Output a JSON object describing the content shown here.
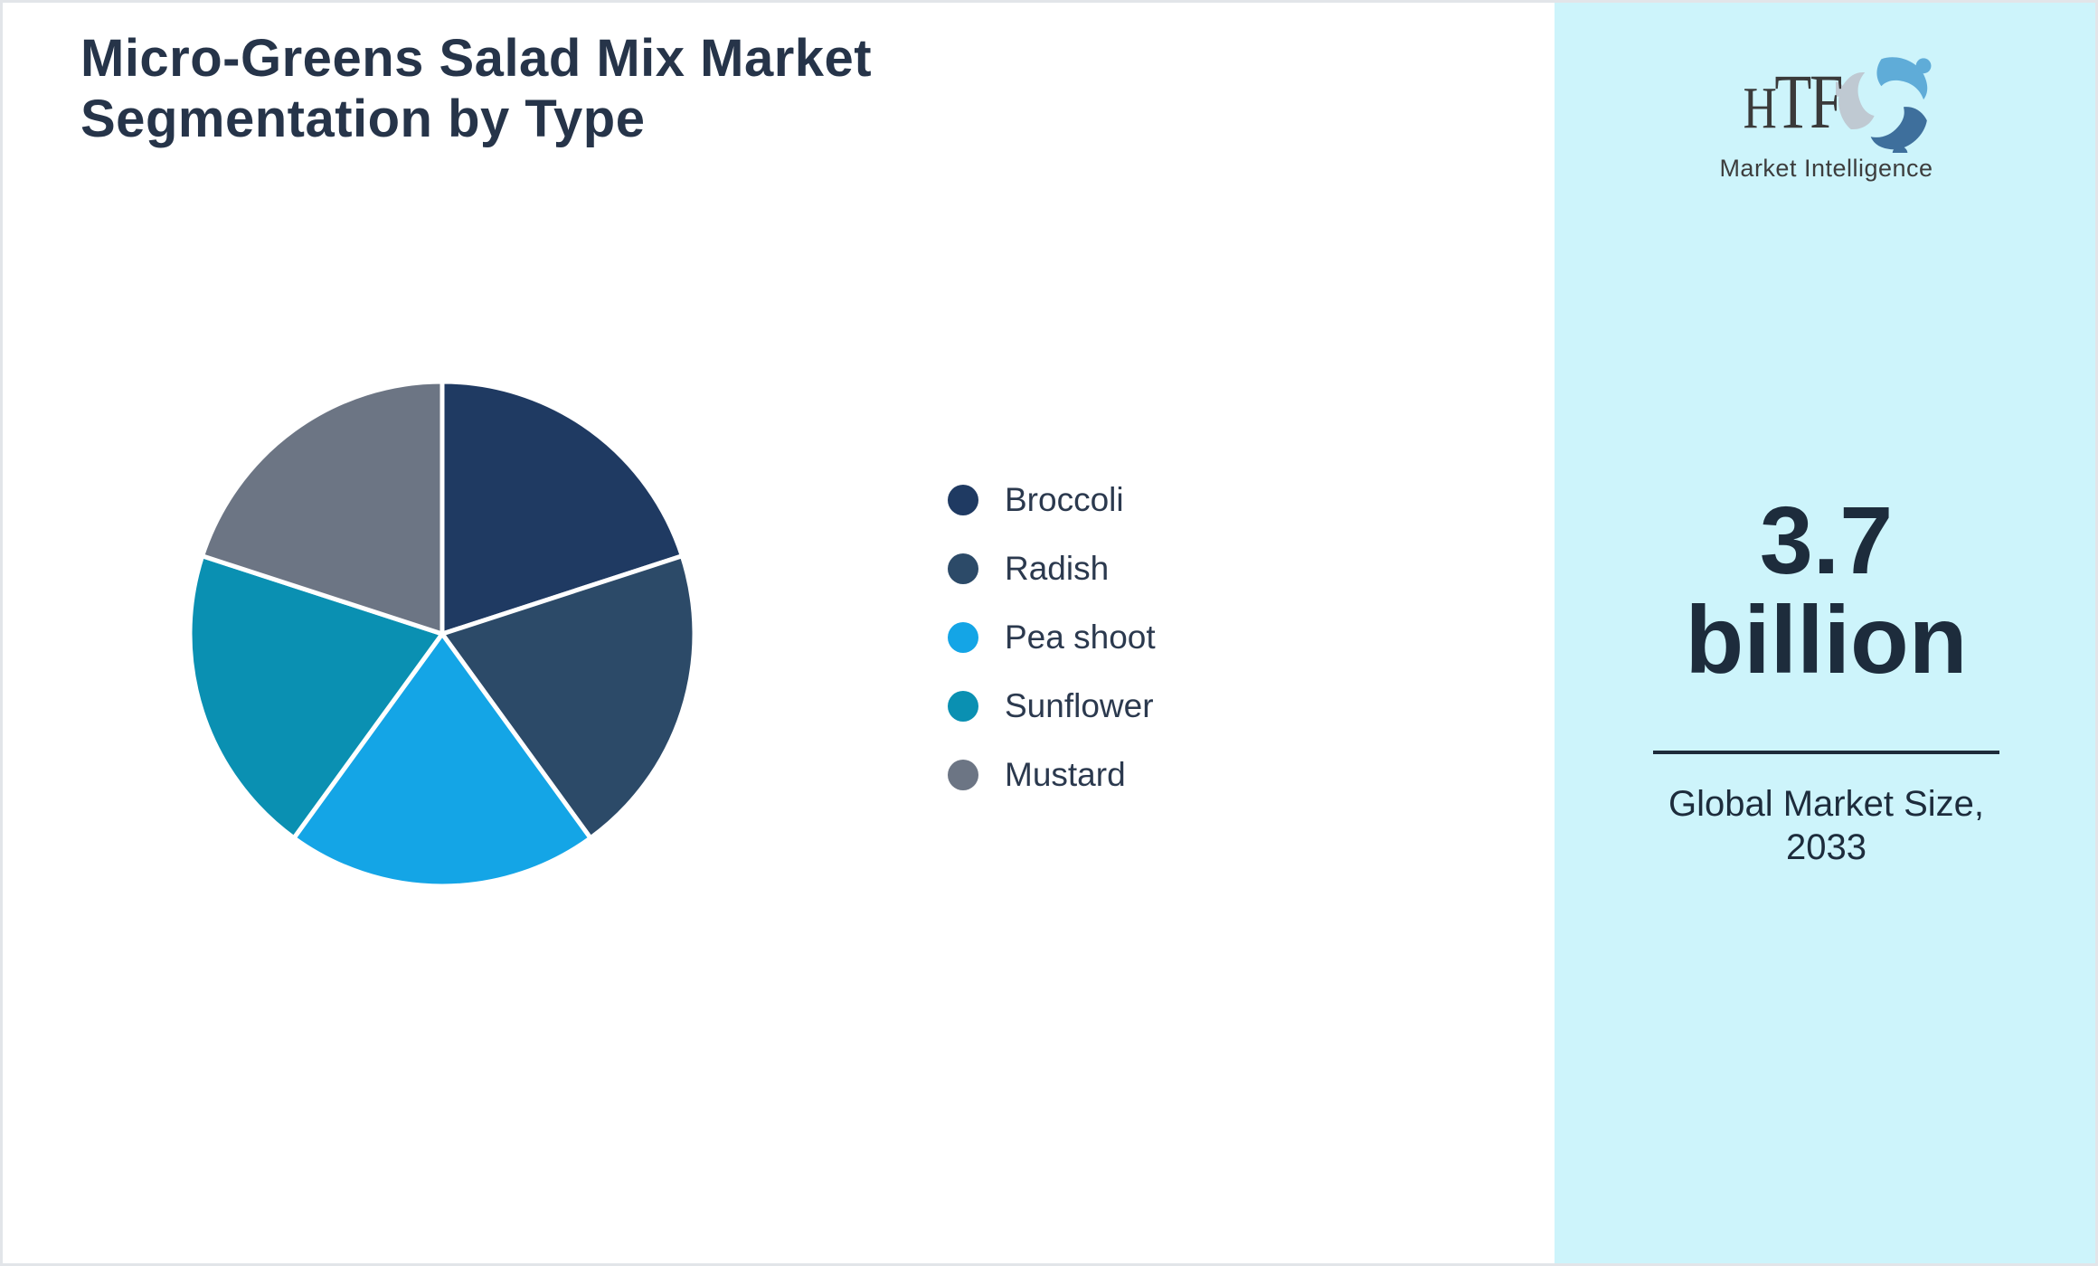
{
  "page": {
    "title_line1": "Micro-Greens Salad Mix Market",
    "title_line2": "Segmentation by Type"
  },
  "chart_data": {
    "type": "pie",
    "title": "Micro-Greens Salad Mix Market Segmentation by Type",
    "categories": [
      "Broccoli",
      "Radish",
      "Pea shoot",
      "Sunflower",
      "Mustard"
    ],
    "values": [
      20,
      20,
      20,
      20,
      20
    ],
    "unit": "percent",
    "colors": [
      "#1f3a62",
      "#2c4a68",
      "#14a5e6",
      "#0a90b2",
      "#6c7584"
    ],
    "start_angle_deg": 0,
    "direction": "clockwise",
    "slice_border_color": "#ffffff",
    "legend_position": "right"
  },
  "sidebar": {
    "background_color": "#cdf4fb",
    "logo": {
      "text": "HTF",
      "subtext": "Market Intelligence",
      "swirl_colors": [
        "#5facd8",
        "#3e6f9c",
        "#bfc9d2"
      ]
    },
    "stat_value_line1": "3.7",
    "stat_value_line2": "billion",
    "stat_caption_line1": "Global Market Size,",
    "stat_caption_line2": "2033",
    "accent_text_color": "#1d2c3c"
  }
}
